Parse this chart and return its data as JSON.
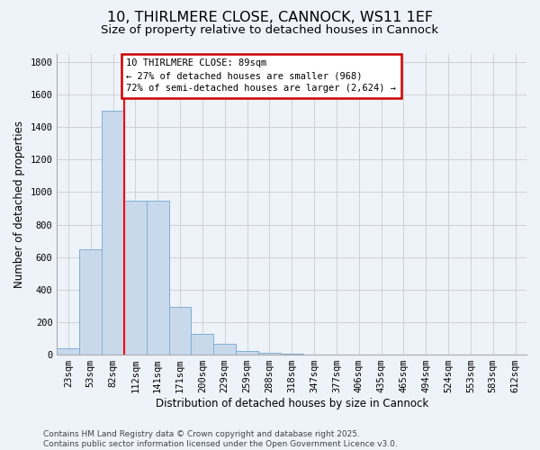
{
  "title_line1": "10, THIRLMERE CLOSE, CANNOCK, WS11 1EF",
  "title_line2": "Size of property relative to detached houses in Cannock",
  "xlabel": "Distribution of detached houses by size in Cannock",
  "ylabel": "Number of detached properties",
  "categories": [
    "23sqm",
    "53sqm",
    "82sqm",
    "112sqm",
    "141sqm",
    "171sqm",
    "200sqm",
    "229sqm",
    "259sqm",
    "288sqm",
    "318sqm",
    "347sqm",
    "377sqm",
    "406sqm",
    "435sqm",
    "465sqm",
    "494sqm",
    "524sqm",
    "553sqm",
    "583sqm",
    "612sqm"
  ],
  "values": [
    40,
    650,
    1500,
    950,
    950,
    295,
    130,
    65,
    25,
    10,
    5,
    2,
    1,
    0,
    0,
    0,
    0,
    0,
    0,
    0,
    0
  ],
  "bar_color": "#c9d9ec",
  "bar_edge_color": "#7fafd4",
  "red_line_x": 2.5,
  "annotation_line1": "10 THIRLMERE CLOSE: 89sqm",
  "annotation_line2": "← 27% of detached houses are smaller (968)",
  "annotation_line3": "72% of semi-detached houses are larger (2,624) →",
  "annotation_box_color": "#ffffff",
  "annotation_box_edgecolor": "#cc0000",
  "ylim": [
    0,
    1850
  ],
  "yticks": [
    0,
    200,
    400,
    600,
    800,
    1000,
    1200,
    1400,
    1600,
    1800
  ],
  "grid_color": "#cccccc",
  "background_color": "#eef2f9",
  "footer_text": "Contains HM Land Registry data © Crown copyright and database right 2025.\nContains public sector information licensed under the Open Government Licence v3.0.",
  "title_fontsize": 11.5,
  "subtitle_fontsize": 9.5,
  "tick_fontsize": 7.5,
  "label_fontsize": 8.5,
  "annotation_fontsize": 7.5,
  "footer_fontsize": 6.5
}
